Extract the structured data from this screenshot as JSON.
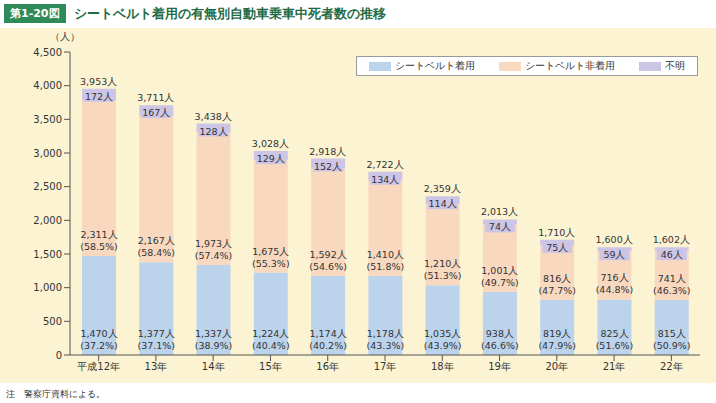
{
  "chart_data": {
    "type": "bar",
    "figure_number": "第1-20図",
    "title": "シートベルト着用の有無別自動車乗車中死者数の推移",
    "y_label": "（人）",
    "note": "注　警察庁資料による。",
    "categories": [
      "平成12年",
      "13年",
      "14年",
      "15年",
      "16年",
      "17年",
      "18年",
      "19年",
      "20年",
      "21年",
      "22年"
    ],
    "series": [
      {
        "name": "シートベルト着用",
        "color": "#bcd3ec",
        "values": [
          1470,
          1377,
          1337,
          1224,
          1174,
          1178,
          1035,
          938,
          819,
          825,
          815
        ],
        "value_labels": [
          "1,470人",
          "1,377人",
          "1,337人",
          "1,224人",
          "1,174人",
          "1,178人",
          "1,035人",
          "938人",
          "819人",
          "825人",
          "815人"
        ],
        "share_labels": [
          "(37.2%)",
          "(37.1%)",
          "(38.9%)",
          "(40.4%)",
          "(40.2%)",
          "(43.3%)",
          "(43.9%)",
          "(46.6%)",
          "(47.9%)",
          "(51.6%)",
          "(50.9%)"
        ]
      },
      {
        "name": "シートベルト非着用",
        "color": "#f8d9c0",
        "values": [
          2311,
          2167,
          1973,
          1675,
          1592,
          1410,
          1210,
          1001,
          816,
          716,
          741
        ],
        "value_labels": [
          "2,311人",
          "2,167人",
          "1,973人",
          "1,675人",
          "1,592人",
          "1,410人",
          "1,210人",
          "1,001人",
          "816人",
          "716人",
          "741人"
        ],
        "share_labels": [
          "(58.5%)",
          "(58.4%)",
          "(57.4%)",
          "(55.3%)",
          "(54.6%)",
          "(51.8%)",
          "(51.3%)",
          "(49.7%)",
          "(47.7%)",
          "(44.8%)",
          "(46.3%)"
        ]
      },
      {
        "name": "不明",
        "color": "#cdc5e6",
        "values": [
          172,
          167,
          128,
          129,
          152,
          134,
          114,
          74,
          75,
          59,
          46
        ],
        "value_labels": [
          "172人",
          "167人",
          "128人",
          "129人",
          "152人",
          "134人",
          "114人",
          "74人",
          "75人",
          "59人",
          "46人"
        ]
      }
    ],
    "totals": [
      3953,
      3711,
      3438,
      3028,
      2918,
      2722,
      2359,
      2013,
      1710,
      1600,
      1602
    ],
    "total_labels": [
      "3,953人",
      "3,711人",
      "3,438人",
      "3,028人",
      "2,918人",
      "2,722人",
      "2,359人",
      "2,013人",
      "1,710人",
      "1,600人",
      "1,602人"
    ],
    "stacked": true,
    "data_labels": true,
    "grid": false,
    "legend": "upper right",
    "ylim": [
      0,
      4500
    ],
    "yticks": [
      0,
      500,
      {
        "value": 1000,
        "label": "1,000"
      },
      {
        "value": 1500,
        "label": "1,500"
      },
      {
        "value": 2000,
        "label": "2,000"
      },
      {
        "value": 2500,
        "label": "2,500"
      },
      {
        "value": 3000,
        "label": "3,000"
      },
      {
        "value": 3500,
        "label": "3,500"
      },
      {
        "value": 4000,
        "label": "4,000"
      },
      {
        "value": 4500,
        "label": "4,500"
      }
    ]
  }
}
